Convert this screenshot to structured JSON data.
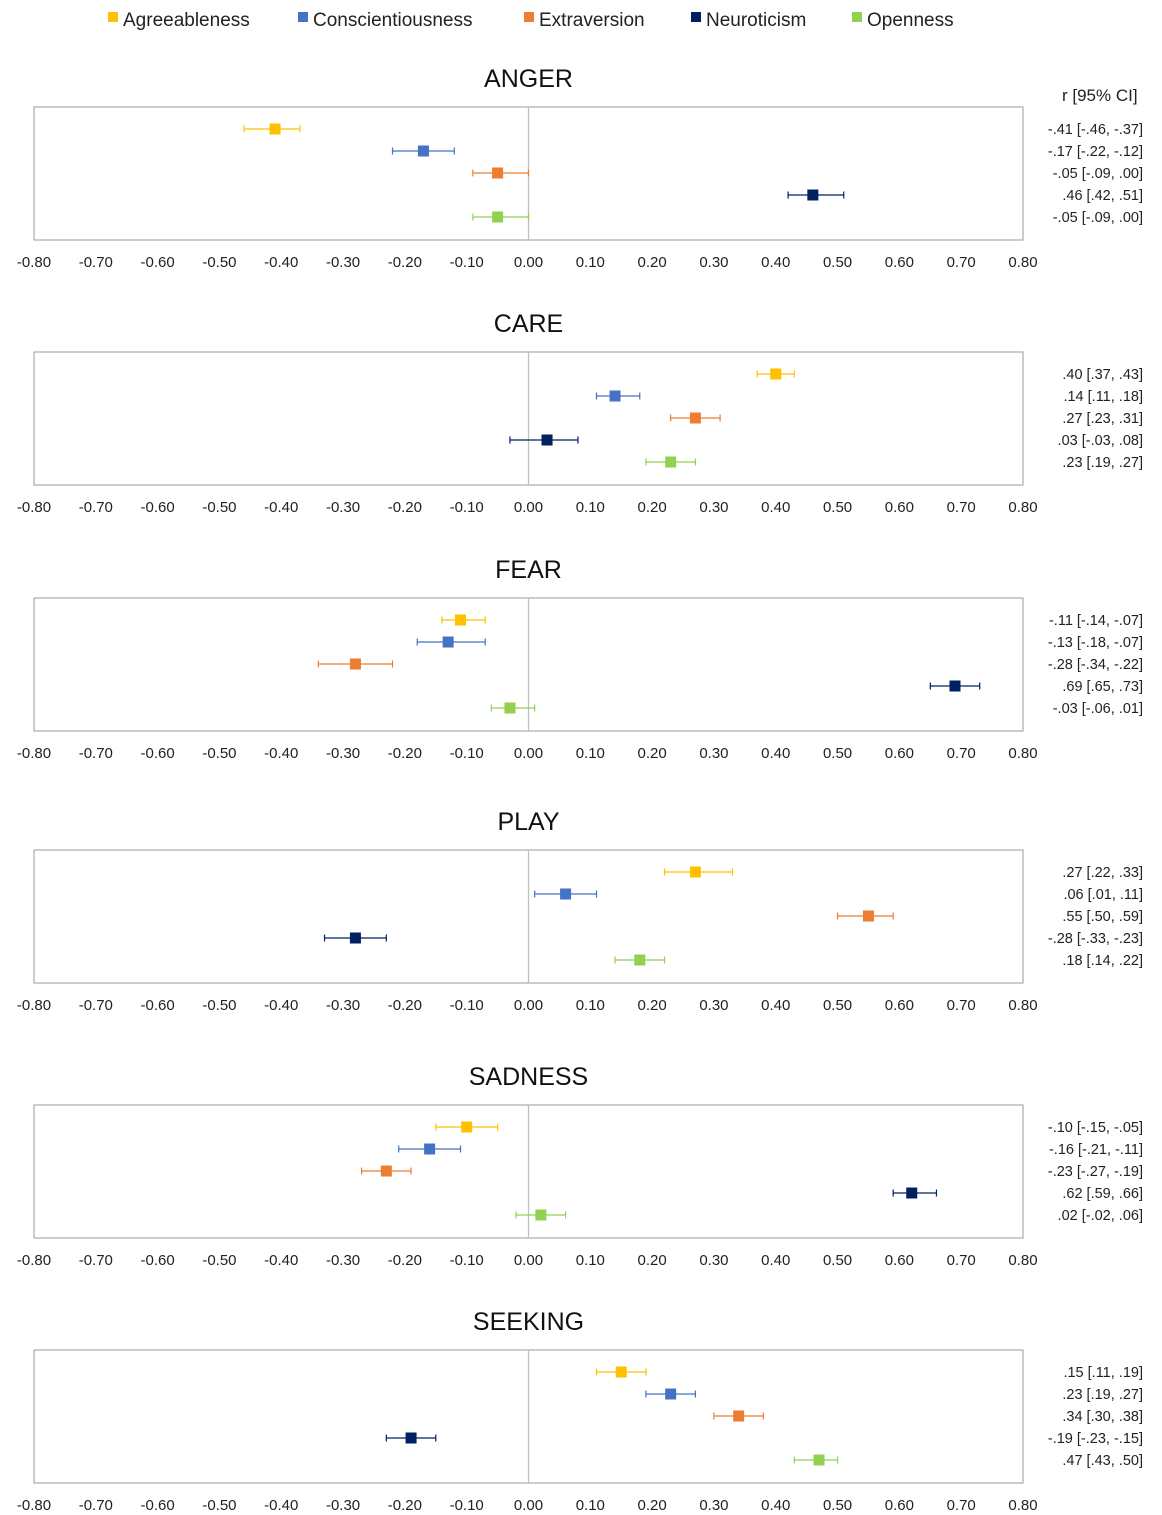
{
  "colors": {
    "Agreeableness": "#ffc000",
    "Conscientiousness": "#4472c4",
    "Extraversion": "#ed7d31",
    "Neuroticism": "#002060",
    "Openness": "#92d050",
    "frame": "#9a9a9a",
    "zero_line": "#bfbfbf"
  },
  "chart_data": {
    "type": "scatter",
    "subtype": "forest-plot",
    "legend": [
      "Agreeableness",
      "Conscientiousness",
      "Extraversion",
      "Neuroticism",
      "Openness"
    ],
    "legend_position": "top",
    "ci_header": "r [95% CI]",
    "xlim": [
      -0.8,
      0.8
    ],
    "xticks": [
      "-0.80",
      "-0.70",
      "-0.60",
      "-0.50",
      "-0.40",
      "-0.30",
      "-0.20",
      "-0.10",
      "0.00",
      "0.10",
      "0.20",
      "0.30",
      "0.40",
      "0.50",
      "0.60",
      "0.70",
      "0.80"
    ],
    "grid": false,
    "panels": [
      {
        "title": "ANGER",
        "points": [
          {
            "series": "Agreeableness",
            "r": -0.41,
            "lo": -0.46,
            "hi": -0.37,
            "label": "-.41 [-.46, -.37]"
          },
          {
            "series": "Conscientiousness",
            "r": -0.17,
            "lo": -0.22,
            "hi": -0.12,
            "label": "-.17 [-.22, -.12]"
          },
          {
            "series": "Extraversion",
            "r": -0.05,
            "lo": -0.09,
            "hi": 0.0,
            "label": "-.05 [-.09, .00]"
          },
          {
            "series": "Neuroticism",
            "r": 0.46,
            "lo": 0.42,
            "hi": 0.51,
            "label": ".46 [.42, .51]"
          },
          {
            "series": "Openness",
            "r": -0.05,
            "lo": -0.09,
            "hi": 0.0,
            "label": "-.05 [-.09, .00]"
          }
        ]
      },
      {
        "title": "CARE",
        "points": [
          {
            "series": "Agreeableness",
            "r": 0.4,
            "lo": 0.37,
            "hi": 0.43,
            "label": ".40 [.37, .43]"
          },
          {
            "series": "Conscientiousness",
            "r": 0.14,
            "lo": 0.11,
            "hi": 0.18,
            "label": ".14 [.11, .18]"
          },
          {
            "series": "Extraversion",
            "r": 0.27,
            "lo": 0.23,
            "hi": 0.31,
            "label": ".27 [.23, .31]"
          },
          {
            "series": "Neuroticism",
            "r": 0.03,
            "lo": -0.03,
            "hi": 0.08,
            "label": ".03 [-.03, .08]"
          },
          {
            "series": "Openness",
            "r": 0.23,
            "lo": 0.19,
            "hi": 0.27,
            "label": ".23 [.19, .27]"
          }
        ]
      },
      {
        "title": "FEAR",
        "points": [
          {
            "series": "Agreeableness",
            "r": -0.11,
            "lo": -0.14,
            "hi": -0.07,
            "label": "-.11 [-.14, -.07]"
          },
          {
            "series": "Conscientiousness",
            "r": -0.13,
            "lo": -0.18,
            "hi": -0.07,
            "label": "-.13 [-.18, -.07]"
          },
          {
            "series": "Extraversion",
            "r": -0.28,
            "lo": -0.34,
            "hi": -0.22,
            "label": "-.28 [-.34, -.22]"
          },
          {
            "series": "Neuroticism",
            "r": 0.69,
            "lo": 0.65,
            "hi": 0.73,
            "label": ".69 [.65, .73]"
          },
          {
            "series": "Openness",
            "r": -0.03,
            "lo": -0.06,
            "hi": 0.01,
            "label": "-.03 [-.06, .01]"
          }
        ]
      },
      {
        "title": "PLAY",
        "points": [
          {
            "series": "Agreeableness",
            "r": 0.27,
            "lo": 0.22,
            "hi": 0.33,
            "label": ".27 [.22, .33]"
          },
          {
            "series": "Conscientiousness",
            "r": 0.06,
            "lo": 0.01,
            "hi": 0.11,
            "label": ".06 [.01, .11]"
          },
          {
            "series": "Extraversion",
            "r": 0.55,
            "lo": 0.5,
            "hi": 0.59,
            "label": ".55 [.50, .59]"
          },
          {
            "series": "Neuroticism",
            "r": -0.28,
            "lo": -0.33,
            "hi": -0.23,
            "label": "-.28 [-.33, -.23]"
          },
          {
            "series": "Openness",
            "r": 0.18,
            "lo": 0.14,
            "hi": 0.22,
            "label": ".18 [.14, .22]"
          }
        ]
      },
      {
        "title": "SADNESS",
        "points": [
          {
            "series": "Agreeableness",
            "r": -0.1,
            "lo": -0.15,
            "hi": -0.05,
            "label": "-.10 [-.15, -.05]"
          },
          {
            "series": "Conscientiousness",
            "r": -0.16,
            "lo": -0.21,
            "hi": -0.11,
            "label": "-.16 [-.21, -.11]"
          },
          {
            "series": "Extraversion",
            "r": -0.23,
            "lo": -0.27,
            "hi": -0.19,
            "label": "-.23 [-.27, -.19]"
          },
          {
            "series": "Neuroticism",
            "r": 0.62,
            "lo": 0.59,
            "hi": 0.66,
            "label": ".62 [.59, .66]"
          },
          {
            "series": "Openness",
            "r": 0.02,
            "lo": -0.02,
            "hi": 0.06,
            "label": ".02 [-.02, .06]"
          }
        ]
      },
      {
        "title": "SEEKING",
        "points": [
          {
            "series": "Agreeableness",
            "r": 0.15,
            "lo": 0.11,
            "hi": 0.19,
            "label": ".15 [.11, .19]"
          },
          {
            "series": "Conscientiousness",
            "r": 0.23,
            "lo": 0.19,
            "hi": 0.27,
            "label": ".23 [.19, .27]"
          },
          {
            "series": "Extraversion",
            "r": 0.34,
            "lo": 0.3,
            "hi": 0.38,
            "label": ".34 [.30, .38]"
          },
          {
            "series": "Neuroticism",
            "r": -0.19,
            "lo": -0.23,
            "hi": -0.15,
            "label": "-.19 [-.23, -.15]"
          },
          {
            "series": "Openness",
            "r": 0.47,
            "lo": 0.43,
            "hi": 0.5,
            "label": ".47 [.43, .50]"
          }
        ]
      }
    ]
  }
}
